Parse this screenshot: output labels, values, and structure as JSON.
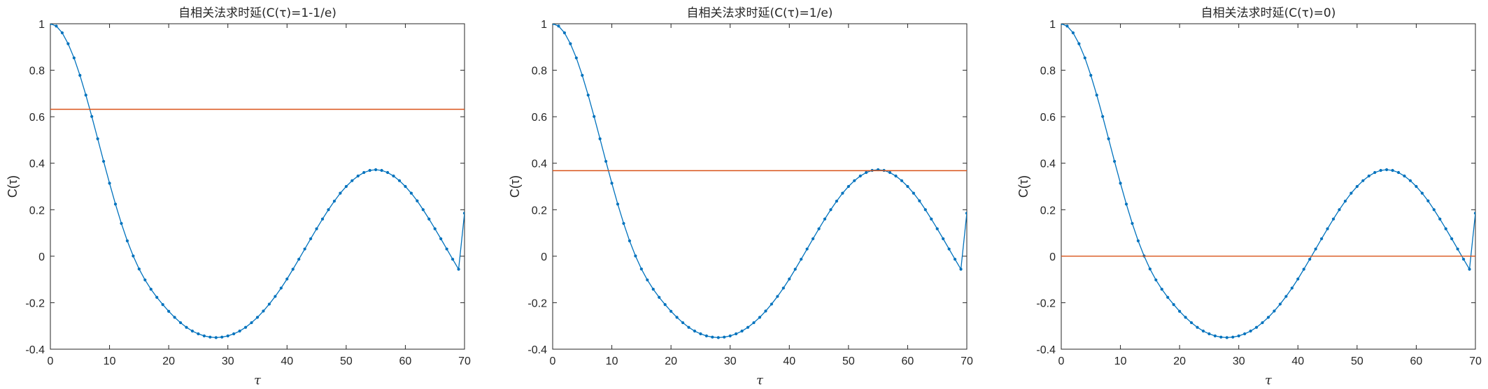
{
  "colors": {
    "curve": "#0072BD",
    "threshold_line": "#D95319",
    "axes": "#262626"
  },
  "chart_data": [
    {
      "type": "line",
      "title": "自相关法求时延(C(τ)=1-1/e)",
      "xlabel": "τ",
      "ylabel": "C(τ)",
      "xlim": [
        0,
        70
      ],
      "ylim": [
        -0.4,
        1
      ],
      "xticks": [
        "0",
        "10",
        "20",
        "30",
        "40",
        "50",
        "60",
        "70"
      ],
      "yticks": [
        "-0.4",
        "-0.2",
        "0",
        "0.2",
        "0.4",
        "0.6",
        "0.8",
        "1"
      ],
      "grid": false,
      "threshold": 0.632,
      "series": [
        {
          "kind": "curve-with-markers",
          "x": [
            0,
            1,
            2,
            3,
            4,
            5,
            6,
            7,
            8,
            9,
            10,
            11,
            12,
            13,
            14,
            15,
            16,
            17,
            18,
            19,
            20,
            21,
            22,
            23,
            24,
            25,
            26,
            27,
            28,
            29,
            30,
            31,
            32,
            33,
            34,
            35,
            36,
            37,
            38,
            39,
            40,
            41,
            42,
            43,
            44,
            45,
            46,
            47,
            48,
            49,
            50,
            51,
            52,
            53,
            54,
            55,
            56,
            57,
            58,
            59,
            60,
            61,
            62,
            63,
            64,
            65,
            66,
            67,
            68,
            69,
            70
          ],
          "y": [
            1.0,
            0.99,
            0.961,
            0.914,
            0.853,
            0.778,
            0.693,
            0.601,
            0.505,
            0.408,
            0.314,
            0.224,
            0.141,
            0.066,
            0.001,
            -0.055,
            -0.102,
            -0.142,
            -0.177,
            -0.208,
            -0.237,
            -0.263,
            -0.286,
            -0.306,
            -0.322,
            -0.334,
            -0.343,
            -0.348,
            -0.35,
            -0.348,
            -0.343,
            -0.334,
            -0.322,
            -0.306,
            -0.286,
            -0.263,
            -0.236,
            -0.206,
            -0.173,
            -0.137,
            -0.098,
            -0.056,
            -0.013,
            0.031,
            0.075,
            0.118,
            0.16,
            0.2,
            0.237,
            0.271,
            0.3,
            0.325,
            0.345,
            0.36,
            0.369,
            0.372,
            0.369,
            0.36,
            0.345,
            0.325,
            0.3,
            0.271,
            0.238,
            0.2,
            0.16,
            0.118,
            0.075,
            0.031,
            -0.013,
            -0.056,
            0.185
          ]
        }
      ]
    },
    {
      "type": "line",
      "title": "自相关法求时延(C(τ)=1/e)",
      "xlabel": "τ",
      "ylabel": "C(τ)",
      "xlim": [
        0,
        70
      ],
      "ylim": [
        -0.4,
        1
      ],
      "xticks": [
        "0",
        "10",
        "20",
        "30",
        "40",
        "50",
        "60",
        "70"
      ],
      "yticks": [
        "-0.4",
        "-0.2",
        "0",
        "0.2",
        "0.4",
        "0.6",
        "0.8",
        "1"
      ],
      "grid": false,
      "threshold": 0.368,
      "series": []
    },
    {
      "type": "line",
      "title": "自相关法求时延(C(τ)=0)",
      "xlabel": "τ",
      "ylabel": "C(τ)",
      "xlim": [
        0,
        70
      ],
      "ylim": [
        -0.4,
        1
      ],
      "xticks": [
        "0",
        "10",
        "20",
        "30",
        "40",
        "50",
        "60",
        "70"
      ],
      "yticks": [
        "-0.4",
        "-0.2",
        "0",
        "0.2",
        "0.4",
        "0.6",
        "0.8",
        "1"
      ],
      "grid": false,
      "threshold": 0,
      "series": []
    }
  ]
}
